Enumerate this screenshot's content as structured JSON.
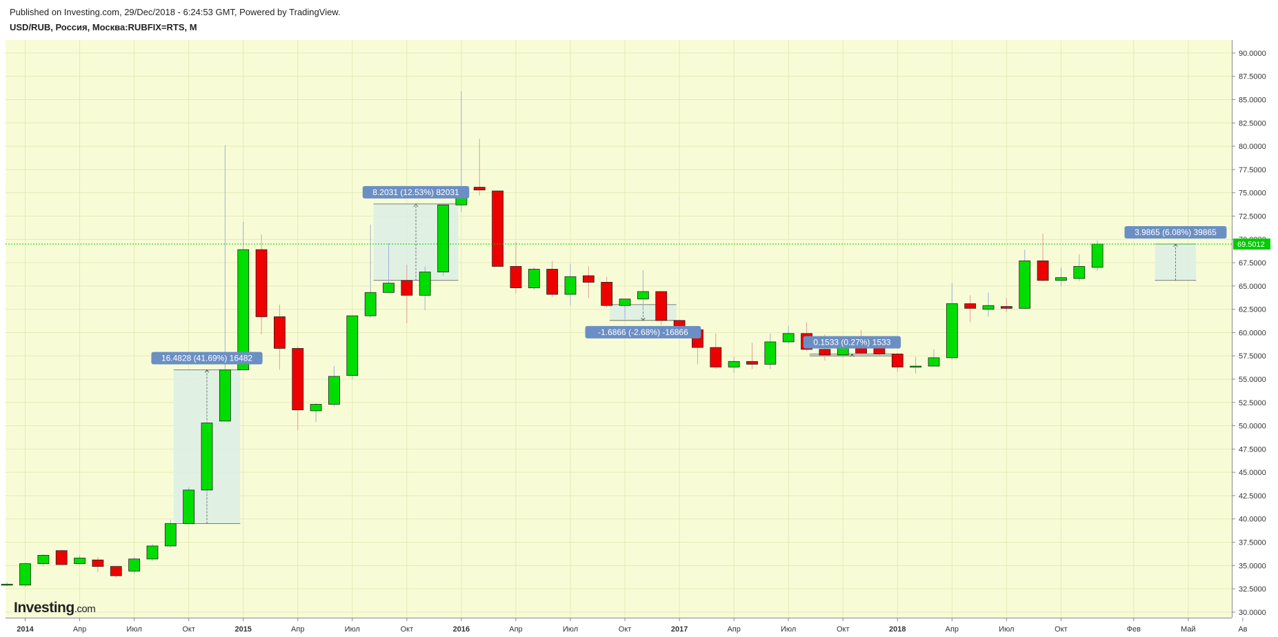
{
  "header": {
    "published": "Published on Investing.com, 29/Dec/2018 - 6:24:53 GMT, Powered by TradingView.",
    "symbol": "USD/RUB, Россия, Москва:RUBFIX=RTS, M"
  },
  "logo": {
    "main": "Investing",
    "suffix": ".com"
  },
  "colors": {
    "background": "#f8fcd6",
    "up": "#00dd00",
    "down": "#ee0000",
    "grid": "#e4eab8",
    "last_price_line": "#00cc00",
    "label_bg": "#6b8fc4",
    "measure_fill": "#dcefe6"
  },
  "chart_data": {
    "type": "candlestick",
    "title": "USD/RUB, Россия, Москва:RUBFIX=RTS, M",
    "xlabel": "",
    "ylabel": "",
    "ylim": [
      29.4,
      91.4
    ],
    "grid": true,
    "y_ticks": [
      "30.0000",
      "32.5000",
      "35.0000",
      "37.5000",
      "40.0000",
      "42.5000",
      "45.0000",
      "47.5000",
      "50.0000",
      "52.5000",
      "55.0000",
      "57.5000",
      "60.0000",
      "62.5000",
      "65.0000",
      "67.5000",
      "70.0000",
      "72.5000",
      "75.0000",
      "77.5000",
      "80.0000",
      "82.5000",
      "85.0000",
      "87.5000",
      "90.0000"
    ],
    "x_ticks": [
      {
        "label": "2014",
        "index": 0,
        "bold": true
      },
      {
        "label": "Апр",
        "index": 3
      },
      {
        "label": "Июл",
        "index": 6
      },
      {
        "label": "Окт",
        "index": 9
      },
      {
        "label": "2015",
        "index": 12,
        "bold": true
      },
      {
        "label": "Апр",
        "index": 15
      },
      {
        "label": "Июл",
        "index": 18
      },
      {
        "label": "Окт",
        "index": 21
      },
      {
        "label": "2016",
        "index": 24,
        "bold": true
      },
      {
        "label": "Апр",
        "index": 27
      },
      {
        "label": "Июл",
        "index": 30
      },
      {
        "label": "Окт",
        "index": 33
      },
      {
        "label": "2017",
        "index": 36,
        "bold": true
      },
      {
        "label": "Апр",
        "index": 39
      },
      {
        "label": "Июл",
        "index": 42
      },
      {
        "label": "Окт",
        "index": 45
      },
      {
        "label": "2018",
        "index": 48,
        "bold": true
      },
      {
        "label": "Апр",
        "index": 51
      },
      {
        "label": "Июл",
        "index": 54
      },
      {
        "label": "Окт",
        "index": 57
      },
      {
        "label": "Фев",
        "index": 61
      },
      {
        "label": "Май",
        "index": 64
      },
      {
        "label": "Ав",
        "index": 67
      }
    ],
    "candles": [
      {
        "date": "2013-12",
        "open": 32.9,
        "high": 33.2,
        "low": 32.8,
        "close": 33.0
      },
      {
        "date": "2014-01",
        "open": 32.9,
        "high": 35.3,
        "low": 32.7,
        "close": 35.2
      },
      {
        "date": "2014-02",
        "open": 35.2,
        "high": 36.2,
        "low": 34.9,
        "close": 36.1
      },
      {
        "date": "2014-03",
        "open": 36.6,
        "high": 36.7,
        "low": 35.1,
        "close": 35.1
      },
      {
        "date": "2014-04",
        "open": 35.2,
        "high": 36.1,
        "low": 35.0,
        "close": 35.8
      },
      {
        "date": "2014-05",
        "open": 35.6,
        "high": 35.9,
        "low": 34.3,
        "close": 34.9
      },
      {
        "date": "2014-06",
        "open": 34.9,
        "high": 34.9,
        "low": 33.7,
        "close": 33.9
      },
      {
        "date": "2014-07",
        "open": 34.4,
        "high": 35.9,
        "low": 34.1,
        "close": 35.7
      },
      {
        "date": "2014-08",
        "open": 35.7,
        "high": 37.3,
        "low": 35.5,
        "close": 37.1
      },
      {
        "date": "2014-09",
        "open": 37.1,
        "high": 39.9,
        "low": 36.9,
        "close": 39.5
      },
      {
        "date": "2014-10",
        "open": 39.5,
        "high": 43.4,
        "low": 39.5,
        "close": 43.1
      },
      {
        "date": "2014-11",
        "open": 43.1,
        "high": 50.5,
        "low": 42.6,
        "close": 50.3
      },
      {
        "date": "2014-12",
        "open": 50.5,
        "high": 80.1,
        "low": 50.5,
        "close": 56.0
      },
      {
        "date": "2015-01",
        "open": 56.0,
        "high": 71.9,
        "low": 56.0,
        "close": 68.9
      },
      {
        "date": "2015-02",
        "open": 68.9,
        "high": 70.5,
        "low": 59.8,
        "close": 61.7
      },
      {
        "date": "2015-03",
        "open": 61.7,
        "high": 63.0,
        "low": 56.0,
        "close": 58.3
      },
      {
        "date": "2015-04",
        "open": 58.3,
        "high": 58.5,
        "low": 49.5,
        "close": 51.7
      },
      {
        "date": "2015-05",
        "open": 51.6,
        "high": 52.4,
        "low": 50.4,
        "close": 52.3
      },
      {
        "date": "2015-06",
        "open": 52.3,
        "high": 56.4,
        "low": 52.0,
        "close": 55.3
      },
      {
        "date": "2015-07",
        "open": 55.4,
        "high": 61.8,
        "low": 55.0,
        "close": 61.8
      },
      {
        "date": "2015-08",
        "open": 61.8,
        "high": 71.6,
        "low": 61.6,
        "close": 64.3
      },
      {
        "date": "2015-09",
        "open": 64.3,
        "high": 69.6,
        "low": 64.3,
        "close": 65.3
      },
      {
        "date": "2015-10",
        "open": 65.6,
        "high": 67.3,
        "low": 61.0,
        "close": 64.0
      },
      {
        "date": "2015-11",
        "open": 64.0,
        "high": 67.1,
        "low": 62.4,
        "close": 66.5
      },
      {
        "date": "2015-12",
        "open": 66.5,
        "high": 73.8,
        "low": 66.1,
        "close": 73.7
      },
      {
        "date": "2016-01",
        "open": 73.7,
        "high": 85.9,
        "low": 72.9,
        "close": 75.6
      },
      {
        "date": "2016-02",
        "open": 75.6,
        "high": 80.8,
        "low": 74.7,
        "close": 75.3
      },
      {
        "date": "2016-03",
        "open": 75.2,
        "high": 75.2,
        "low": 67.1,
        "close": 67.1
      },
      {
        "date": "2016-04",
        "open": 67.1,
        "high": 69.7,
        "low": 64.2,
        "close": 64.8
      },
      {
        "date": "2016-05",
        "open": 64.8,
        "high": 67.0,
        "low": 64.6,
        "close": 66.8
      },
      {
        "date": "2016-06",
        "open": 66.8,
        "high": 67.7,
        "low": 63.8,
        "close": 64.1
      },
      {
        "date": "2016-07",
        "open": 64.1,
        "high": 67.4,
        "low": 62.9,
        "close": 66.0
      },
      {
        "date": "2016-08",
        "open": 66.1,
        "high": 67.1,
        "low": 63.7,
        "close": 65.4
      },
      {
        "date": "2016-09",
        "open": 65.4,
        "high": 66.0,
        "low": 62.7,
        "close": 62.9
      },
      {
        "date": "2016-10",
        "open": 62.9,
        "high": 63.6,
        "low": 61.4,
        "close": 63.6
      },
      {
        "date": "2016-11",
        "open": 63.6,
        "high": 66.7,
        "low": 62.4,
        "close": 64.4
      },
      {
        "date": "2016-12",
        "open": 64.4,
        "high": 64.4,
        "low": 60.8,
        "close": 61.3
      },
      {
        "date": "2017-01",
        "open": 61.3,
        "high": 61.4,
        "low": 59.4,
        "close": 60.3
      },
      {
        "date": "2017-02",
        "open": 60.3,
        "high": 60.7,
        "low": 56.6,
        "close": 58.4
      },
      {
        "date": "2017-03",
        "open": 58.4,
        "high": 59.9,
        "low": 56.1,
        "close": 56.3
      },
      {
        "date": "2017-04",
        "open": 56.3,
        "high": 57.4,
        "low": 55.7,
        "close": 56.9
      },
      {
        "date": "2017-05",
        "open": 56.9,
        "high": 58.9,
        "low": 56.1,
        "close": 56.6
      },
      {
        "date": "2017-06",
        "open": 56.6,
        "high": 59.9,
        "low": 56.1,
        "close": 59.0
      },
      {
        "date": "2017-07",
        "open": 59.0,
        "high": 60.7,
        "low": 58.8,
        "close": 59.9
      },
      {
        "date": "2017-08",
        "open": 59.9,
        "high": 61.1,
        "low": 58.0,
        "close": 58.2
      },
      {
        "date": "2017-09",
        "open": 58.2,
        "high": 59.8,
        "low": 57.0,
        "close": 57.6
      },
      {
        "date": "2017-10",
        "open": 57.6,
        "high": 58.9,
        "low": 57.3,
        "close": 58.5
      },
      {
        "date": "2017-11",
        "open": 58.5,
        "high": 60.3,
        "low": 57.6,
        "close": 57.8
      },
      {
        "date": "2017-12",
        "open": 58.6,
        "high": 59.1,
        "low": 57.5,
        "close": 57.7
      },
      {
        "date": "2018-01",
        "open": 57.7,
        "high": 57.8,
        "low": 55.8,
        "close": 56.3
      },
      {
        "date": "2018-02",
        "open": 56.3,
        "high": 57.4,
        "low": 55.6,
        "close": 56.4
      },
      {
        "date": "2018-03",
        "open": 56.4,
        "high": 58.2,
        "low": 56.4,
        "close": 57.3
      },
      {
        "date": "2018-04",
        "open": 57.3,
        "high": 65.3,
        "low": 57.1,
        "close": 63.1
      },
      {
        "date": "2018-05",
        "open": 63.1,
        "high": 64.0,
        "low": 61.1,
        "close": 62.6
      },
      {
        "date": "2018-06",
        "open": 62.5,
        "high": 64.3,
        "low": 61.7,
        "close": 62.9
      },
      {
        "date": "2018-07",
        "open": 62.8,
        "high": 63.7,
        "low": 62.2,
        "close": 62.6
      },
      {
        "date": "2018-08",
        "open": 62.6,
        "high": 68.9,
        "low": 62.5,
        "close": 67.7
      },
      {
        "date": "2018-09",
        "open": 67.7,
        "high": 70.6,
        "low": 65.5,
        "close": 65.6
      },
      {
        "date": "2018-10",
        "open": 65.6,
        "high": 67.0,
        "low": 65.0,
        "close": 65.9
      },
      {
        "date": "2018-11",
        "open": 65.8,
        "high": 68.4,
        "low": 65.5,
        "close": 67.1
      },
      {
        "date": "2018-12",
        "open": 67.0,
        "high": 69.9,
        "low": 66.6,
        "close": 69.5
      }
    ],
    "last_price": 69.5012,
    "last_price_label": "69.5012",
    "measurements": [
      {
        "label": "16.4828 (41.69%) 16482",
        "from_index": 9,
        "to_index": 11,
        "from_value": 39.5,
        "to_value": 56.0
      },
      {
        "label": "8.2031 (12.53%) 82031",
        "from_index": 20,
        "to_index": 23,
        "from_value": 65.6,
        "to_value": 73.8
      },
      {
        "label": "-1.6866 (-2.68%) -16866",
        "from_index": 33,
        "to_index": 35,
        "from_value": 63.0,
        "to_value": 61.3
      },
      {
        "label": "0.1533 (0.27%) 1533",
        "from_index": 44,
        "to_index": 47,
        "from_value": 57.5,
        "to_value": 57.7
      },
      {
        "label": "3.9865 (6.08%) 39865",
        "from_index": 63,
        "to_index": 63.6,
        "from_value": 65.6,
        "to_value": 69.5
      }
    ]
  }
}
